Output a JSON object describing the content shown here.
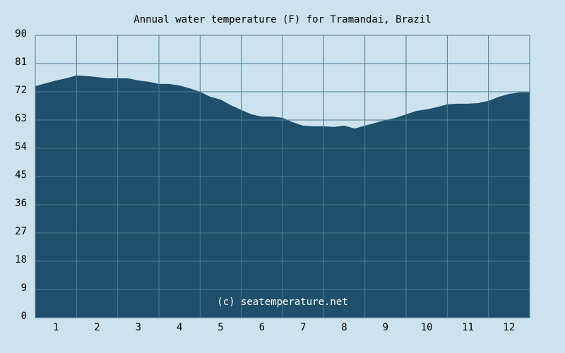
{
  "chart_data": {
    "type": "area",
    "title": "Annual water temperature (F) for Tramandai, Brazil",
    "annotation": "(c) seatemperature.net",
    "x": [
      0.5,
      0.75,
      1,
      1.25,
      1.5,
      1.75,
      2,
      2.25,
      2.5,
      2.75,
      3,
      3.25,
      3.5,
      3.75,
      4,
      4.25,
      4.5,
      4.75,
      5,
      5.25,
      5.5,
      5.75,
      6,
      6.25,
      6.5,
      6.75,
      7,
      7.25,
      7.5,
      7.75,
      8,
      8.25,
      8.5,
      8.75,
      9,
      9.25,
      9.5,
      9.75,
      10,
      10.25,
      10.5,
      10.75,
      11,
      11.25,
      11.5,
      11.75,
      12,
      12.25,
      12.5
    ],
    "values": [
      73.8,
      74.7,
      75.6,
      76.3,
      77.2,
      77.0,
      76.7,
      76.3,
      76.3,
      76.3,
      75.6,
      75.2,
      74.5,
      74.5,
      74.0,
      73.1,
      72.0,
      70.4,
      69.5,
      67.7,
      66.2,
      64.8,
      64.1,
      64.1,
      63.7,
      62.3,
      61.2,
      61.0,
      61.0,
      60.8,
      61.2,
      60.3,
      61.2,
      62.1,
      63.0,
      63.7,
      64.8,
      65.9,
      66.4,
      67.1,
      68.0,
      68.2,
      68.2,
      68.4,
      69.1,
      70.4,
      71.3,
      71.8,
      71.8
    ],
    "color": "#1f4f6b",
    "xlim": [
      0.5,
      12.5
    ],
    "xticks": [
      1,
      2,
      3,
      4,
      5,
      6,
      7,
      8,
      9,
      10,
      11,
      12
    ],
    "ylim": [
      0,
      90
    ],
    "yticks": [
      0,
      9,
      18,
      27,
      36,
      45,
      54,
      63,
      72,
      81,
      90
    ],
    "grid": true
  }
}
